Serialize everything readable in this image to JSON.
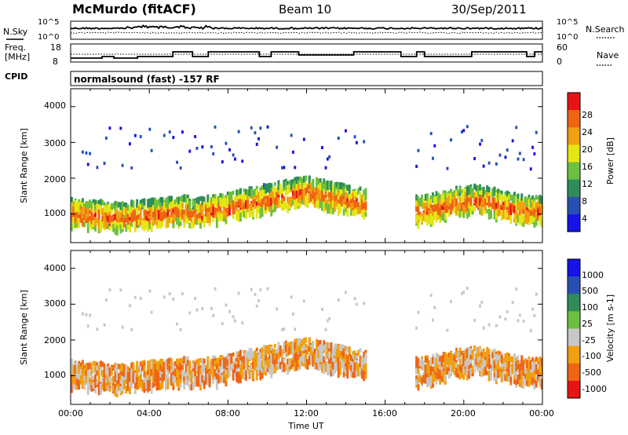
{
  "header": {
    "station": "McMurdo (fitACF)",
    "beam": "Beam 10",
    "date": "30/Sep/2011"
  },
  "noise_panel": {
    "left_label": "N.Sky",
    "right_label": "N.Search",
    "left_ticks": [
      "10^5",
      "10^0"
    ],
    "right_ticks": [
      "10^5",
      "10^0"
    ]
  },
  "freq_panel": {
    "left_label_1": "Freq.",
    "left_label_2": "[MHz]",
    "right_label": "Nave",
    "left_ticks": [
      "18",
      "8"
    ],
    "right_ticks": [
      "60",
      "0"
    ]
  },
  "cpid": {
    "label": "CPID",
    "program": "normalsound (fast) -157 RF"
  },
  "colors": {
    "power": [
      "#1414e6",
      "#2850b4",
      "#2f8c5a",
      "#6cc040",
      "#e6e614",
      "#f0a010",
      "#f06414",
      "#e61414"
    ],
    "velocity": [
      "#1414e6",
      "#2850b4",
      "#2f8c5a",
      "#6cc040",
      "#c8c8c8",
      "#f0a010",
      "#f06414",
      "#e61414"
    ]
  },
  "chart_data": [
    {
      "type": "heatmap",
      "name": "power",
      "ylabel": "Slant Range [km]",
      "yticks": [
        "4000",
        "3000",
        "2000",
        "1000"
      ],
      "ylim": [
        200,
        4500
      ],
      "xlim": [
        0,
        24
      ],
      "colorbar_label": "Power [dB]",
      "colorbar_ticks": [
        "28",
        "24",
        "20",
        "16",
        "12",
        "8",
        "4"
      ],
      "colorbar_range": [
        0,
        32
      ]
    },
    {
      "type": "heatmap",
      "name": "velocity",
      "ylabel": "Slant Range [km]",
      "yticks": [
        "4000",
        "3000",
        "2000",
        "1000"
      ],
      "ylim": [
        200,
        4500
      ],
      "xlim": [
        0,
        24
      ],
      "xlabel": "Time UT",
      "xticks": [
        "00:00",
        "04:00",
        "08:00",
        "12:00",
        "16:00",
        "20:00",
        "00:00"
      ],
      "colorbar_label": "Velocity [m s-1]",
      "colorbar_ticks": [
        "1000",
        "500",
        "100",
        "25",
        "-25",
        "-100",
        "-500",
        "-1000"
      ]
    }
  ]
}
